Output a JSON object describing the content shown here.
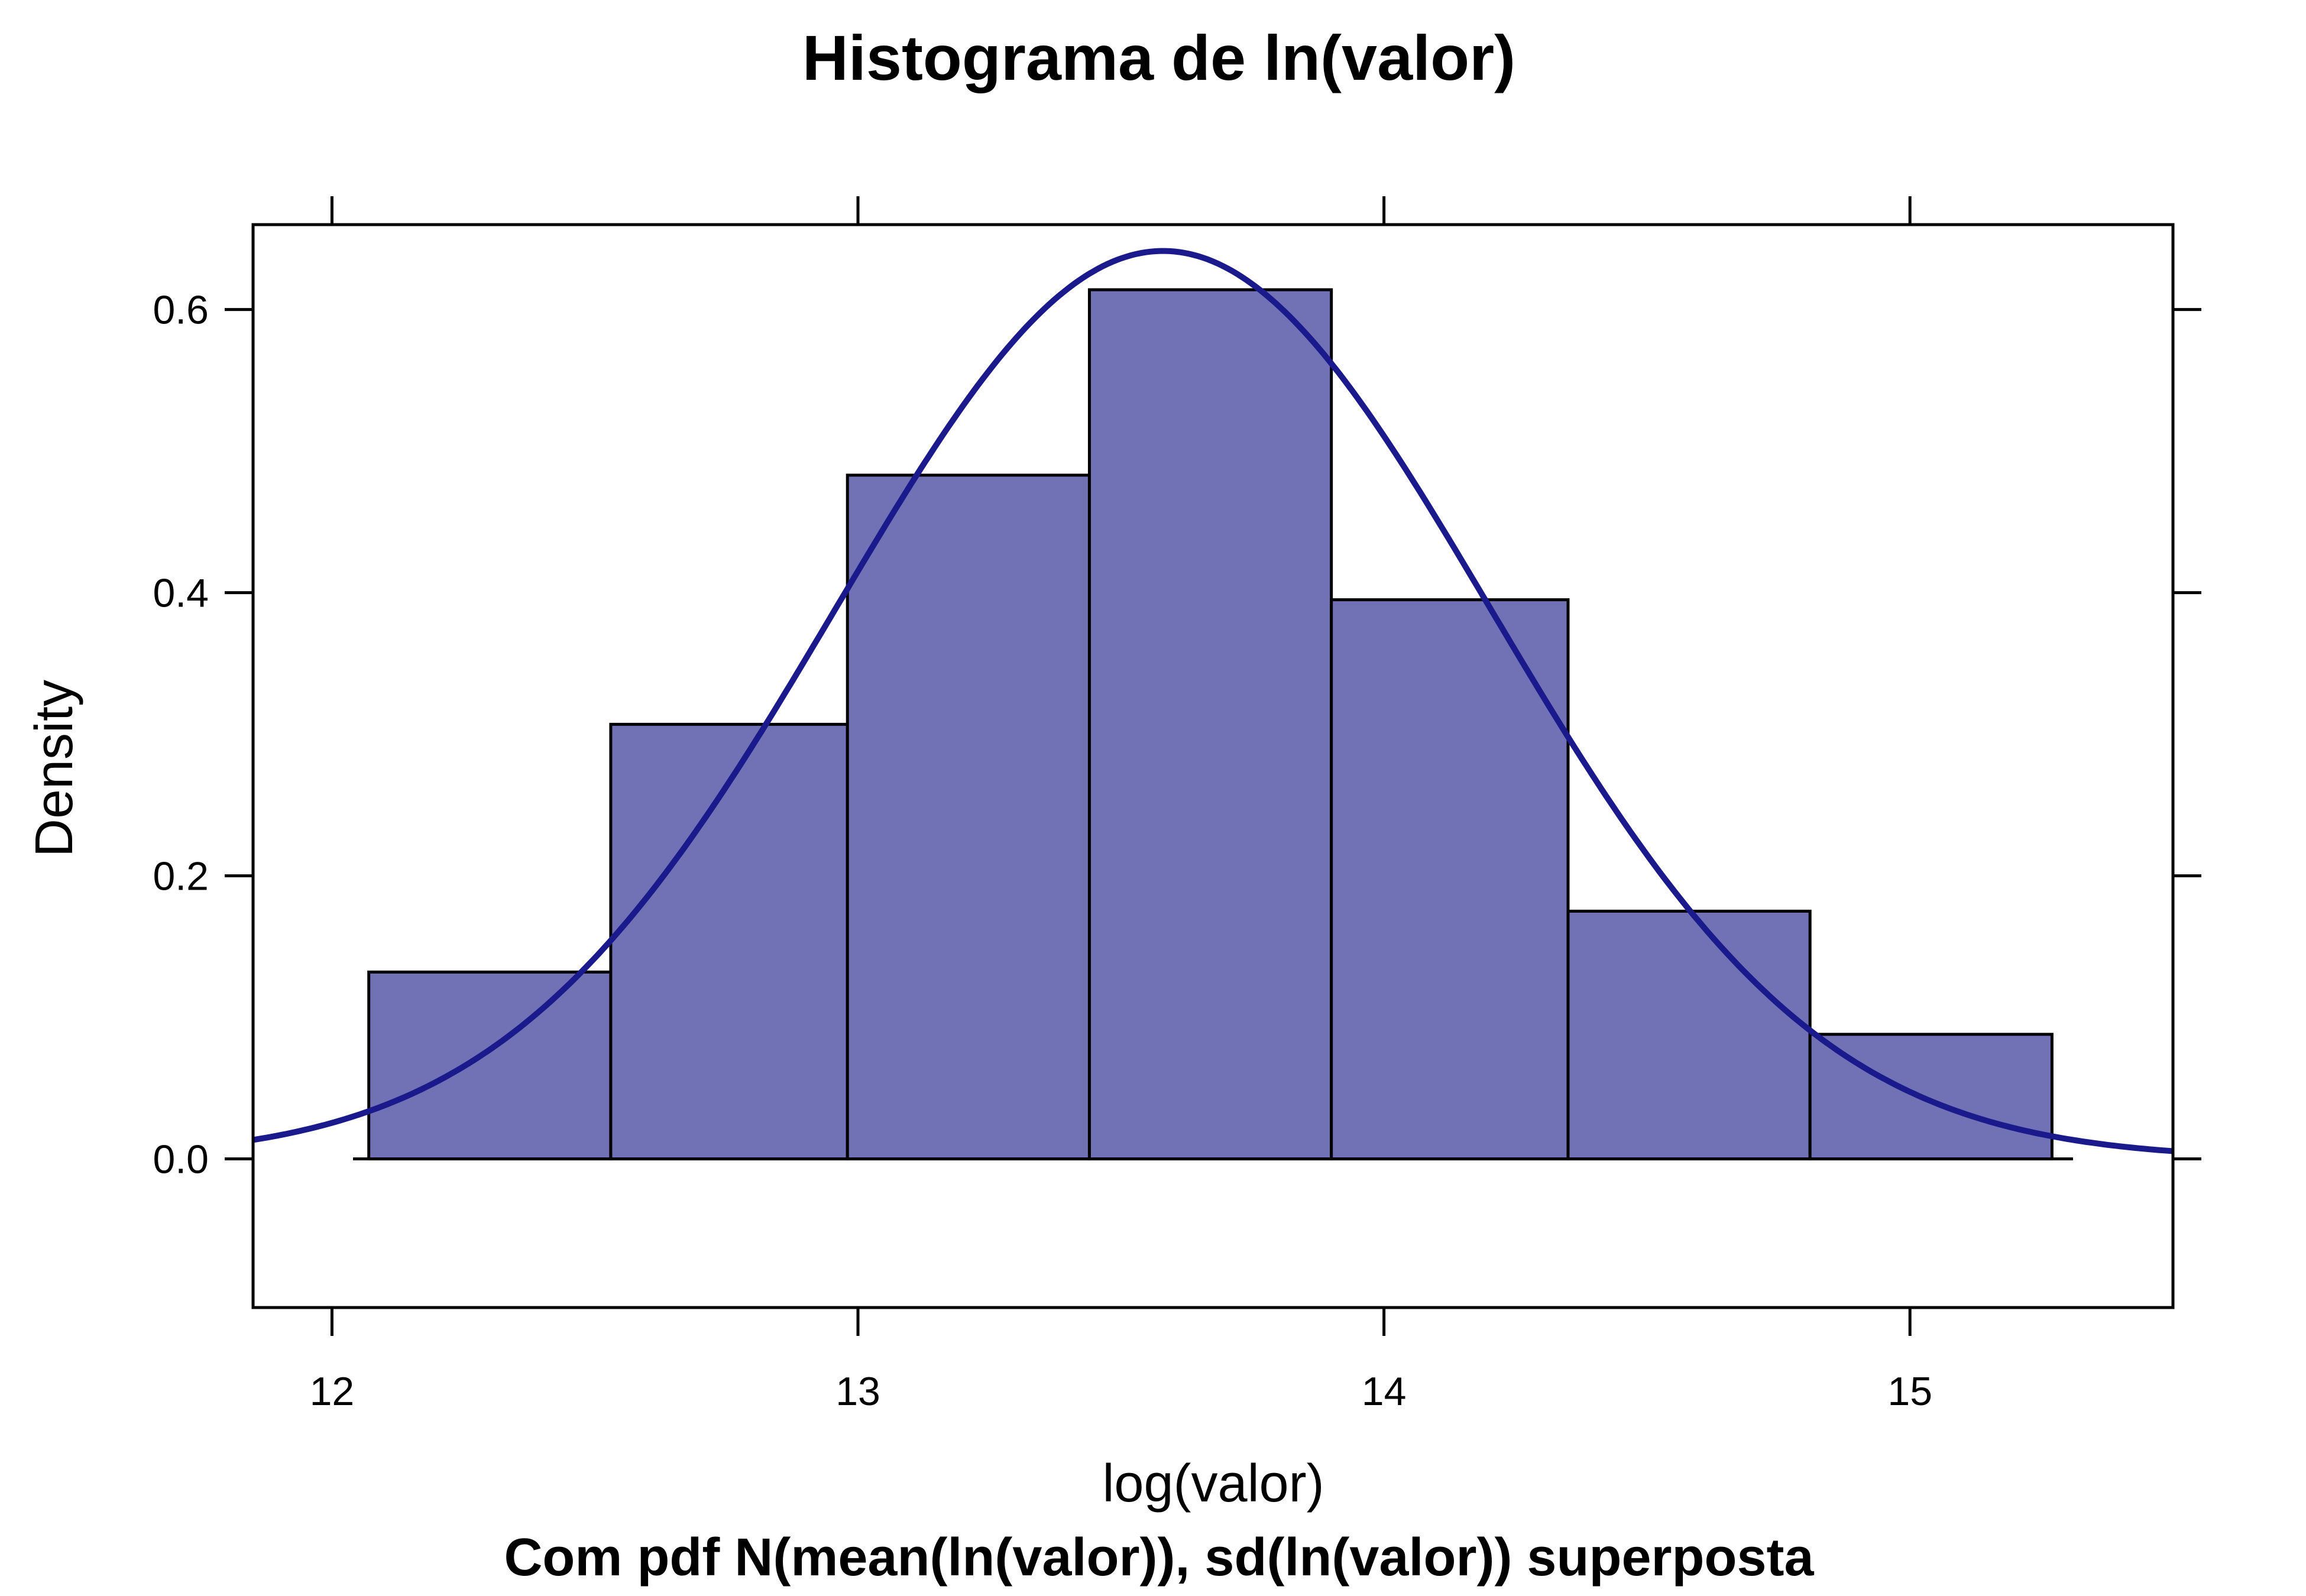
{
  "chart_data": {
    "type": "bar",
    "title": "Histograma de ln(valor)",
    "subtitle": "Com pdf N(mean(ln(valor)), sd(ln(valor)) superposta",
    "xlabel": "log(valor)",
    "ylabel": "Density",
    "xlim": [
      11.85,
      15.5
    ],
    "ylim": [
      -0.105,
      0.66
    ],
    "x_ticks": [
      12,
      13,
      14,
      15
    ],
    "x_tick_labels": [
      "12",
      "13",
      "14",
      "15"
    ],
    "y_ticks": [
      0.0,
      0.2,
      0.4,
      0.6
    ],
    "y_tick_labels": [
      "0.0",
      "0.2",
      "0.4",
      "0.6"
    ],
    "baseline_range": [
      12.04,
      15.31
    ],
    "bins": [
      {
        "start": 12.07,
        "end": 12.53,
        "density": 0.132
      },
      {
        "start": 12.53,
        "end": 12.98,
        "density": 0.307
      },
      {
        "start": 12.98,
        "end": 13.44,
        "density": 0.483
      },
      {
        "start": 13.44,
        "end": 13.9,
        "density": 0.614
      },
      {
        "start": 13.9,
        "end": 14.35,
        "density": 0.395
      },
      {
        "start": 14.35,
        "end": 14.81,
        "density": 0.175
      },
      {
        "start": 14.81,
        "end": 15.27,
        "density": 0.088
      }
    ],
    "normal_pdf": {
      "mean": 13.58,
      "sd": 0.622
    },
    "bar_color": "#7172b6",
    "curve_color": "#1a1a8c",
    "grid": false
  }
}
